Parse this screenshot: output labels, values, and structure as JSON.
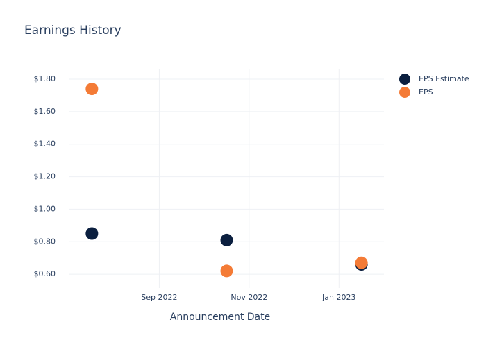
{
  "chart_data": {
    "type": "scatter",
    "title": "Earnings History",
    "x_label": "Announcement Date",
    "x": [
      "2022-07",
      "2022-10",
      "2023-01"
    ],
    "series": [
      {
        "name": "EPS Estimate",
        "color": "#0b1f3f",
        "values": [
          0.85,
          0.81,
          0.66
        ]
      },
      {
        "name": "EPS",
        "color": "#f47b36",
        "values": [
          1.74,
          0.62,
          0.67
        ]
      }
    ],
    "xlim": [
      "2022-07",
      "2023-02"
    ],
    "xticks": [
      {
        "value": "2022-09",
        "label": "Sep 2022"
      },
      {
        "value": "2022-11",
        "label": "Nov 2022"
      },
      {
        "value": "2023-01",
        "label": "Jan 2023"
      }
    ],
    "ylim": [
      0.515,
      1.86
    ],
    "yticks": [
      {
        "value": 0.6,
        "label": "$0.60"
      },
      {
        "value": 0.8,
        "label": "$0.80"
      },
      {
        "value": 1.0,
        "label": "$1.00"
      },
      {
        "value": 1.2,
        "label": "$1.20"
      },
      {
        "value": 1.4,
        "label": "$1.40"
      },
      {
        "value": 1.6,
        "label": "$1.60"
      },
      {
        "value": 1.8,
        "label": "$1.80"
      }
    ],
    "grid": true,
    "legend": "top-right"
  }
}
